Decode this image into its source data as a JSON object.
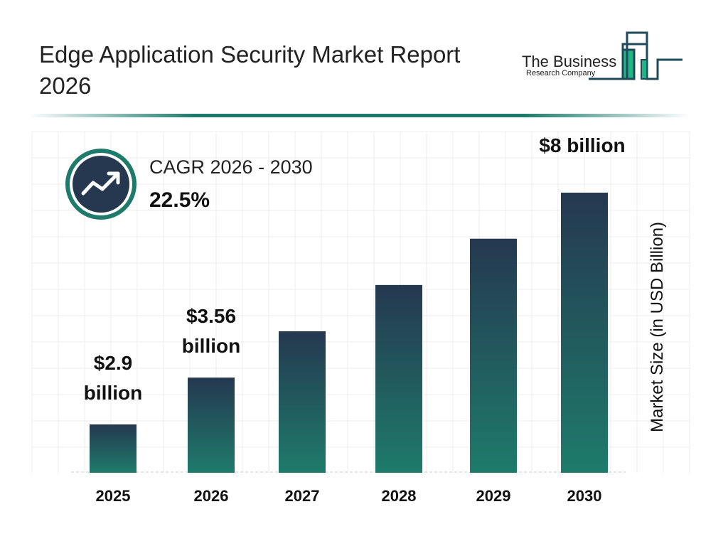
{
  "header": {
    "title": "Edge Application Security Market Report 2026"
  },
  "logo": {
    "line1": "The Business",
    "line2": "Research Company",
    "colors": {
      "outline": "#1f4a5a",
      "fill": "#20b585"
    }
  },
  "cagr": {
    "label": "CAGR 2026 - 2030",
    "value": "22.5%",
    "icon": "trending-up-icon"
  },
  "colors": {
    "bar_top": "#253850",
    "bar_bottom": "#1e7b6b",
    "ring": "#1e7b6b",
    "icon_bg": "#253850"
  },
  "chart_data": {
    "type": "bar",
    "categories": [
      "2025",
      "2026",
      "2027",
      "2028",
      "2029",
      "2030"
    ],
    "values": [
      2.9,
      3.56,
      4.36,
      5.34,
      6.54,
      8
    ],
    "data_labels": [
      "$2.9 billion",
      "$3.56 billion",
      "",
      "",
      "",
      "$8 billion"
    ],
    "ylabel": "Market Size (in USD Billion)",
    "grid": true
  }
}
